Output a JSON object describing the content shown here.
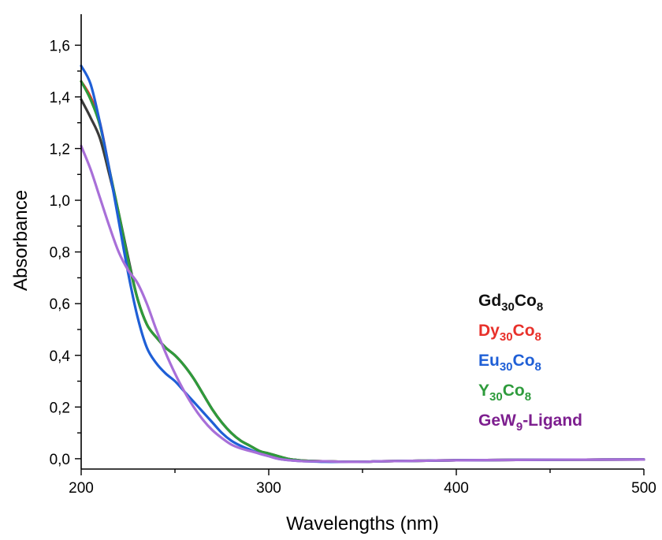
{
  "chart_data": {
    "type": "line",
    "title": "",
    "xlabel": "Wavelengths (nm)",
    "ylabel": "Absorbance",
    "xlim": [
      200,
      500
    ],
    "ylim": [
      -0.04,
      1.72
    ],
    "x_ticks": [
      200,
      300,
      400,
      500
    ],
    "x_tick_labels": [
      "200",
      "300",
      "400",
      "500"
    ],
    "x_minor_ticks": [
      250,
      350,
      450
    ],
    "y_ticks": [
      0.0,
      0.2,
      0.4,
      0.6,
      0.8,
      1.0,
      1.2,
      1.4,
      1.6
    ],
    "y_tick_labels": [
      "0,0",
      "0,2",
      "0,4",
      "0,6",
      "0,8",
      "1,0",
      "1,2",
      "1,4",
      "1,6"
    ],
    "y_minor_ticks": [
      0.1,
      0.3,
      0.5,
      0.7,
      0.9,
      1.1,
      1.3,
      1.5
    ],
    "grid": false,
    "legend_position": "right",
    "series": [
      {
        "name": "Gd30Co8",
        "name_parts": [
          {
            "text": "Gd",
            "sub": false
          },
          {
            "text": "30",
            "sub": true
          },
          {
            "text": "Co",
            "sub": false
          },
          {
            "text": "8",
            "sub": true
          }
        ],
        "color": "#3b3b3b",
        "x": [
          200,
          205,
          210,
          215,
          220,
          225,
          230,
          235,
          240,
          245,
          250,
          255,
          260,
          265,
          270,
          275,
          280,
          285,
          290,
          295,
          300,
          305,
          310,
          315,
          320,
          330,
          340,
          350,
          360,
          380,
          400,
          450,
          500
        ],
        "values": [
          1.39,
          1.32,
          1.24,
          1.1,
          0.95,
          0.78,
          0.62,
          0.52,
          0.47,
          0.43,
          0.4,
          0.36,
          0.31,
          0.25,
          0.19,
          0.14,
          0.1,
          0.07,
          0.05,
          0.03,
          0.02,
          0.01,
          0.0,
          -0.005,
          -0.008,
          -0.01,
          -0.012,
          -0.012,
          -0.01,
          -0.008,
          -0.006,
          -0.004,
          -0.003
        ]
      },
      {
        "name": "Dy30Co8",
        "name_parts": [
          {
            "text": "Dy",
            "sub": false
          },
          {
            "text": "30",
            "sub": true
          },
          {
            "text": "Co",
            "sub": false
          },
          {
            "text": "8",
            "sub": true
          }
        ],
        "color": "#e8302a",
        "x": [
          200,
          205,
          210,
          215,
          220,
          225,
          230,
          235,
          240,
          245,
          250,
          255,
          260,
          265,
          270,
          275,
          280,
          285,
          290,
          295,
          300,
          305,
          310,
          315,
          320,
          330,
          340,
          350,
          360,
          380,
          400,
          450,
          500
        ],
        "values": [
          1.46,
          1.4,
          1.3,
          1.12,
          0.95,
          0.77,
          0.62,
          0.52,
          0.47,
          0.43,
          0.4,
          0.36,
          0.31,
          0.25,
          0.19,
          0.14,
          0.1,
          0.07,
          0.05,
          0.03,
          0.02,
          0.01,
          0.0,
          -0.005,
          -0.008,
          -0.01,
          -0.012,
          -0.012,
          -0.01,
          -0.008,
          -0.006,
          -0.004,
          -0.003
        ]
      },
      {
        "name": "Eu30Co8",
        "name_parts": [
          {
            "text": "Eu",
            "sub": false
          },
          {
            "text": "30",
            "sub": true
          },
          {
            "text": "Co",
            "sub": false
          },
          {
            "text": "8",
            "sub": true
          }
        ],
        "color": "#1f5fd6",
        "x": [
          200,
          205,
          210,
          215,
          220,
          225,
          230,
          235,
          240,
          245,
          250,
          255,
          260,
          265,
          270,
          275,
          280,
          285,
          290,
          295,
          300,
          305,
          310,
          315,
          320,
          330,
          340,
          350,
          360,
          380,
          400,
          450,
          500
        ],
        "values": [
          1.52,
          1.45,
          1.3,
          1.12,
          0.92,
          0.72,
          0.55,
          0.43,
          0.37,
          0.33,
          0.3,
          0.26,
          0.22,
          0.18,
          0.14,
          0.1,
          0.07,
          0.05,
          0.035,
          0.02,
          0.01,
          0.0,
          -0.005,
          -0.008,
          -0.01,
          -0.012,
          -0.012,
          -0.012,
          -0.01,
          -0.008,
          -0.006,
          -0.004,
          -0.003
        ]
      },
      {
        "name": "Y30Co8",
        "name_parts": [
          {
            "text": "Y",
            "sub": false
          },
          {
            "text": "30",
            "sub": true
          },
          {
            "text": "Co",
            "sub": false
          },
          {
            "text": "8",
            "sub": true
          }
        ],
        "color": "#2e9b3c",
        "x": [
          200,
          205,
          210,
          215,
          220,
          225,
          230,
          235,
          240,
          245,
          250,
          255,
          260,
          265,
          270,
          275,
          280,
          285,
          290,
          295,
          300,
          305,
          310,
          315,
          320,
          330,
          340,
          350,
          360,
          380,
          400,
          450,
          500
        ],
        "values": [
          1.46,
          1.39,
          1.29,
          1.12,
          0.95,
          0.77,
          0.62,
          0.52,
          0.47,
          0.43,
          0.4,
          0.36,
          0.31,
          0.25,
          0.19,
          0.14,
          0.1,
          0.07,
          0.05,
          0.03,
          0.02,
          0.01,
          0.0,
          -0.005,
          -0.008,
          -0.01,
          -0.012,
          -0.012,
          -0.01,
          -0.008,
          -0.006,
          -0.004,
          -0.003
        ]
      },
      {
        "name": "GeW9-Ligand",
        "name_parts": [
          {
            "text": "GeW",
            "sub": false
          },
          {
            "text": "9",
            "sub": true
          },
          {
            "text": "-Ligand",
            "sub": false
          }
        ],
        "color": "#a86fd8",
        "legend_color": "#7d1f8f",
        "x": [
          200,
          205,
          210,
          215,
          220,
          225,
          230,
          235,
          240,
          245,
          250,
          255,
          260,
          265,
          270,
          275,
          280,
          285,
          290,
          295,
          300,
          305,
          310,
          315,
          320,
          330,
          340,
          350,
          360,
          380,
          400,
          450,
          500
        ],
        "values": [
          1.21,
          1.12,
          1.01,
          0.9,
          0.8,
          0.73,
          0.68,
          0.6,
          0.5,
          0.41,
          0.33,
          0.26,
          0.2,
          0.15,
          0.11,
          0.08,
          0.055,
          0.04,
          0.03,
          0.02,
          0.01,
          0.0,
          -0.005,
          -0.008,
          -0.01,
          -0.01,
          -0.012,
          -0.012,
          -0.01,
          -0.008,
          -0.006,
          -0.004,
          -0.003
        ]
      }
    ]
  }
}
